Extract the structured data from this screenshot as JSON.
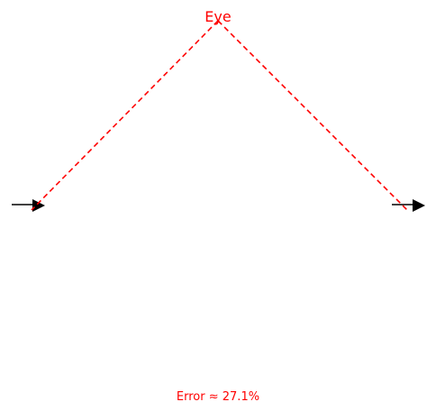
{
  "diagram": {
    "eye_label": "Eye",
    "error_text": "Error ≈ 27.1%",
    "sightline_color": "#ff0000",
    "text_color": "#ff0000",
    "arrow_color": "#000000",
    "sightline_style": "dashed"
  }
}
